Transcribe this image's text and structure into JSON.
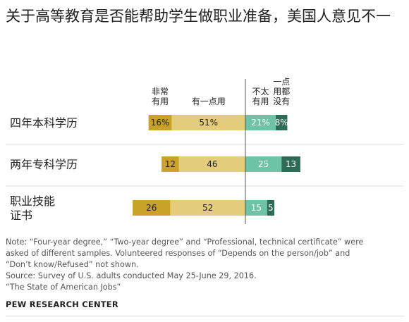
{
  "title": "关于高等教育是否能帮助学生做职业准备，美国人意见不一",
  "chart_data": {
    "type": "bar",
    "stacked": true,
    "diverging": true,
    "categories": [
      {
        "label_lines": [
          "四年本科学历"
        ]
      },
      {
        "label_lines": [
          "两年专科学历"
        ]
      },
      {
        "label_lines": [
          "职业技能",
          "证书"
        ]
      }
    ],
    "column_headers": [
      {
        "series": 0,
        "lines": [
          "非常",
          "有用"
        ]
      },
      {
        "series": 1,
        "lines": [
          "有一点用"
        ]
      },
      {
        "series": 2,
        "lines": [
          "不太",
          "有用"
        ]
      },
      {
        "series": 3,
        "lines": [
          "一点",
          "用都",
          "没有"
        ]
      }
    ],
    "series": [
      {
        "name": "非常有用",
        "side": "left",
        "color": "#c9a227",
        "text_color": "#222222",
        "values": [
          16,
          12,
          26
        ],
        "labels": [
          "16%",
          "12",
          "26"
        ]
      },
      {
        "name": "有一点用",
        "side": "left",
        "color": "#e3cd7d",
        "text_color": "#222222",
        "values": [
          51,
          46,
          52
        ],
        "labels": [
          "51%",
          "46",
          "52"
        ]
      },
      {
        "name": "不太有用",
        "side": "right",
        "color": "#6ec2a6",
        "text_color": "#ffffff",
        "values": [
          21,
          25,
          15
        ],
        "labels": [
          "21%",
          "25",
          "15"
        ]
      },
      {
        "name": "一点用都没有",
        "side": "right",
        "color": "#2e6b57",
        "text_color": "#ffffff",
        "values": [
          8,
          13,
          5
        ],
        "labels": [
          "8%",
          "13",
          "5"
        ]
      }
    ],
    "xlabel": "",
    "ylabel": ""
  },
  "notes": [
    "Note: “Four-year degree,” “Two-year degree” and “Professional, technical certificate” were",
    "asked of different samples. Volunteered responses of “Depends on the person/job” and",
    "“Don’t know/Refused” not shown.",
    "Source: Survey of U.S. adults conducted May 25-June 29, 2016.",
    "“The State of American Jobs”"
  ],
  "org": "PEW RESEARCH CENTER"
}
